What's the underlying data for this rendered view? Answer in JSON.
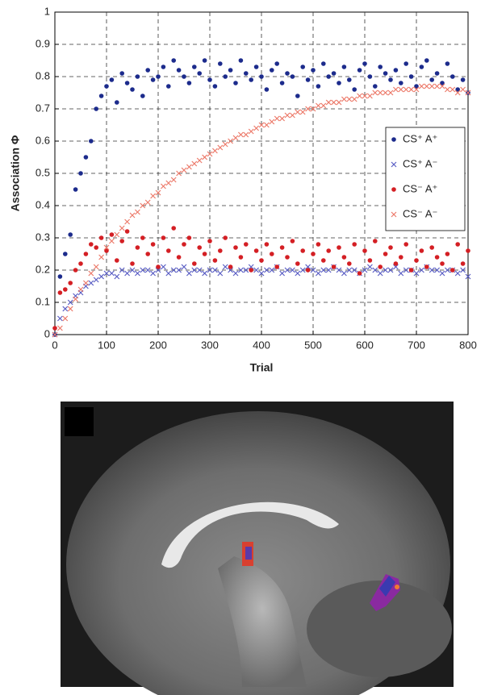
{
  "chart_data": {
    "type": "scatter",
    "xlabel": "Trial",
    "ylabel": "Association Φ",
    "xlim": [
      0,
      800
    ],
    "ylim": [
      0,
      1
    ],
    "xticks": [
      0,
      100,
      200,
      300,
      400,
      500,
      600,
      700,
      800
    ],
    "yticks": [
      0,
      0.1,
      0.2,
      0.3,
      0.4,
      0.5,
      0.6,
      0.7,
      0.8,
      0.9,
      1
    ],
    "grid": true,
    "legend": "right",
    "x": [
      0,
      10,
      20,
      30,
      40,
      50,
      60,
      70,
      80,
      90,
      100,
      110,
      120,
      130,
      140,
      150,
      160,
      170,
      180,
      190,
      200,
      210,
      220,
      230,
      240,
      250,
      260,
      270,
      280,
      290,
      300,
      310,
      320,
      330,
      340,
      350,
      360,
      370,
      380,
      390,
      400,
      410,
      420,
      430,
      440,
      450,
      460,
      470,
      480,
      490,
      500,
      510,
      520,
      530,
      540,
      550,
      560,
      570,
      580,
      590,
      600,
      610,
      620,
      630,
      640,
      650,
      660,
      670,
      680,
      690,
      700,
      710,
      720,
      730,
      740,
      750,
      760,
      770,
      780,
      790,
      800
    ],
    "series": [
      {
        "name": "CS⁺ A⁺",
        "color": "#1c2b8c",
        "marker": "dot",
        "values": [
          0,
          0.18,
          0.25,
          0.31,
          0.45,
          0.5,
          0.55,
          0.6,
          0.7,
          0.74,
          0.77,
          0.79,
          0.72,
          0.81,
          0.78,
          0.76,
          0.8,
          0.74,
          0.82,
          0.79,
          0.8,
          0.83,
          0.77,
          0.85,
          0.82,
          0.8,
          0.78,
          0.83,
          0.81,
          0.85,
          0.79,
          0.77,
          0.84,
          0.8,
          0.82,
          0.78,
          0.85,
          0.81,
          0.79,
          0.83,
          0.8,
          0.76,
          0.82,
          0.84,
          0.78,
          0.81,
          0.8,
          0.74,
          0.83,
          0.79,
          0.82,
          0.77,
          0.84,
          0.8,
          0.81,
          0.78,
          0.83,
          0.79,
          0.76,
          0.82,
          0.84,
          0.8,
          0.77,
          0.83,
          0.81,
          0.79,
          0.82,
          0.78,
          0.84,
          0.8,
          0.77,
          0.83,
          0.85,
          0.79,
          0.81,
          0.78,
          0.84,
          0.8,
          0.76,
          0.79,
          0.75
        ]
      },
      {
        "name": "CS⁺ A⁻",
        "color": "#5a5ec4",
        "marker": "x",
        "values": [
          0,
          0.05,
          0.08,
          0.1,
          0.12,
          0.13,
          0.15,
          0.16,
          0.17,
          0.18,
          0.19,
          0.19,
          0.18,
          0.2,
          0.19,
          0.2,
          0.19,
          0.2,
          0.2,
          0.19,
          0.2,
          0.21,
          0.19,
          0.2,
          0.2,
          0.21,
          0.19,
          0.2,
          0.2,
          0.19,
          0.2,
          0.2,
          0.19,
          0.21,
          0.2,
          0.19,
          0.2,
          0.2,
          0.21,
          0.2,
          0.19,
          0.2,
          0.2,
          0.21,
          0.19,
          0.2,
          0.2,
          0.19,
          0.2,
          0.21,
          0.2,
          0.19,
          0.2,
          0.2,
          0.21,
          0.2,
          0.19,
          0.2,
          0.2,
          0.19,
          0.2,
          0.21,
          0.2,
          0.19,
          0.2,
          0.2,
          0.21,
          0.19,
          0.2,
          0.2,
          0.19,
          0.2,
          0.21,
          0.2,
          0.2,
          0.19,
          0.2,
          0.2,
          0.19,
          0.2,
          0.18
        ]
      },
      {
        "name": "CS⁻ A⁺",
        "color": "#d41f24",
        "marker": "dot",
        "values": [
          0.02,
          0.13,
          0.14,
          0.16,
          0.2,
          0.22,
          0.25,
          0.28,
          0.27,
          0.3,
          0.26,
          0.31,
          0.23,
          0.29,
          0.32,
          0.22,
          0.27,
          0.3,
          0.25,
          0.28,
          0.21,
          0.3,
          0.26,
          0.33,
          0.24,
          0.28,
          0.3,
          0.22,
          0.27,
          0.25,
          0.29,
          0.23,
          0.26,
          0.3,
          0.21,
          0.27,
          0.24,
          0.28,
          0.2,
          0.26,
          0.23,
          0.28,
          0.25,
          0.21,
          0.27,
          0.24,
          0.29,
          0.22,
          0.26,
          0.2,
          0.25,
          0.28,
          0.23,
          0.26,
          0.21,
          0.27,
          0.24,
          0.22,
          0.28,
          0.19,
          0.26,
          0.23,
          0.29,
          0.21,
          0.25,
          0.27,
          0.22,
          0.24,
          0.28,
          0.2,
          0.23,
          0.26,
          0.21,
          0.27,
          0.24,
          0.22,
          0.25,
          0.2,
          0.28,
          0.22,
          0.26
        ]
      },
      {
        "name": "CS⁻ A⁻",
        "color": "#ec7a6a",
        "marker": "x",
        "values": [
          0,
          0.02,
          0.05,
          0.08,
          0.11,
          0.14,
          0.16,
          0.19,
          0.21,
          0.24,
          0.27,
          0.29,
          0.31,
          0.33,
          0.35,
          0.37,
          0.38,
          0.4,
          0.41,
          0.43,
          0.44,
          0.46,
          0.47,
          0.48,
          0.5,
          0.51,
          0.52,
          0.53,
          0.54,
          0.55,
          0.56,
          0.57,
          0.58,
          0.59,
          0.6,
          0.61,
          0.62,
          0.62,
          0.63,
          0.64,
          0.65,
          0.65,
          0.66,
          0.67,
          0.67,
          0.68,
          0.68,
          0.69,
          0.69,
          0.7,
          0.7,
          0.71,
          0.71,
          0.72,
          0.72,
          0.72,
          0.73,
          0.73,
          0.73,
          0.74,
          0.74,
          0.74,
          0.75,
          0.75,
          0.75,
          0.75,
          0.76,
          0.76,
          0.76,
          0.76,
          0.76,
          0.77,
          0.77,
          0.77,
          0.77,
          0.77,
          0.76,
          0.76,
          0.75,
          0.76,
          0.75
        ]
      }
    ]
  }
}
